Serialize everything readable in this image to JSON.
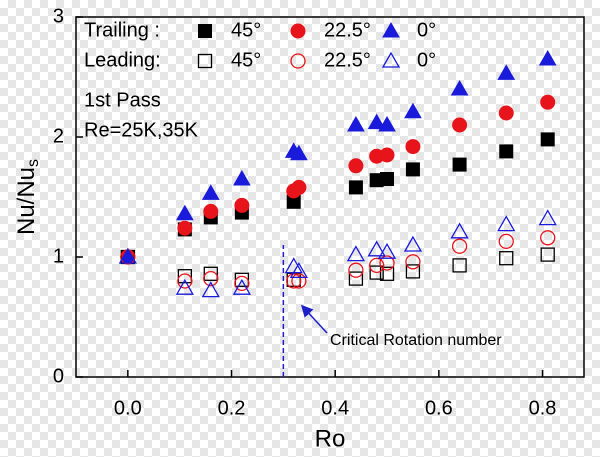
{
  "chart_data": {
    "type": "scatter",
    "xlabel": "Ro",
    "ylabel": {
      "text": "Nu/Nu",
      "sub": "s"
    },
    "xlim": [
      -0.1,
      0.88
    ],
    "ylim": [
      0,
      3
    ],
    "xticks": [
      {
        "value": 0,
        "label": "0.0"
      },
      0.2,
      0.4,
      0.6,
      0.8
    ],
    "yticks": [
      0,
      1,
      2,
      3
    ],
    "annotations": [
      "1st Pass",
      "Re=25K,35K"
    ],
    "critical_line": {
      "x": 0.3,
      "ymax": 1.1,
      "label": "Critical Rotation number",
      "color": "#1f1fc8"
    },
    "series_groups": [
      {
        "label": "Trailing :",
        "series": [
          {
            "name": "45°",
            "marker": "square",
            "filled": true,
            "color": "#000000",
            "x": [
              0,
              0.11,
              0.16,
              0.22,
              0.32,
              0.44,
              0.48,
              0.5,
              0.55,
              0.64,
              0.73,
              0.81
            ],
            "values": [
              1.0,
              1.23,
              1.33,
              1.37,
              1.46,
              1.58,
              1.64,
              1.65,
              1.73,
              1.77,
              1.88,
              1.98
            ]
          },
          {
            "name": "22.5°",
            "marker": "circle",
            "filled": true,
            "color": "#e8141b",
            "x": [
              0,
              0.11,
              0.16,
              0.22,
              0.32,
              0.33,
              0.44,
              0.48,
              0.5,
              0.55,
              0.64,
              0.73,
              0.81
            ],
            "values": [
              1.0,
              1.24,
              1.38,
              1.43,
              1.55,
              1.58,
              1.76,
              1.84,
              1.85,
              1.92,
              2.1,
              2.2,
              2.29
            ]
          },
          {
            "name": "0°",
            "marker": "triangle",
            "filled": true,
            "color": "#1a1adb",
            "x": [
              0,
              0.11,
              0.16,
              0.22,
              0.32,
              0.33,
              0.44,
              0.48,
              0.5,
              0.55,
              0.64,
              0.73,
              0.81
            ],
            "values": [
              1.0,
              1.36,
              1.53,
              1.65,
              1.88,
              1.86,
              2.1,
              2.12,
              2.1,
              2.21,
              2.4,
              2.53,
              2.65
            ]
          }
        ]
      },
      {
        "label": "Leading:",
        "series": [
          {
            "name": "45°",
            "marker": "square",
            "filled": false,
            "color": "#000000",
            "x": [
              0,
              0.11,
              0.16,
              0.22,
              0.32,
              0.44,
              0.48,
              0.5,
              0.55,
              0.64,
              0.73,
              0.81
            ],
            "values": [
              1.0,
              0.84,
              0.86,
              0.81,
              0.81,
              0.82,
              0.87,
              0.86,
              0.88,
              0.93,
              0.99,
              1.02
            ]
          },
          {
            "name": "22.5°",
            "marker": "circle",
            "filled": false,
            "color": "#e8141b",
            "x": [
              0,
              0.11,
              0.16,
              0.22,
              0.32,
              0.33,
              0.44,
              0.48,
              0.5,
              0.55,
              0.64,
              0.73,
              0.81
            ],
            "values": [
              1.0,
              0.8,
              0.82,
              0.78,
              0.8,
              0.8,
              0.89,
              0.93,
              0.95,
              0.96,
              1.09,
              1.13,
              1.16
            ]
          },
          {
            "name": "0°",
            "marker": "triangle",
            "filled": false,
            "color": "#1a1adb",
            "x": [
              0,
              0.11,
              0.16,
              0.22,
              0.32,
              0.33,
              0.44,
              0.48,
              0.5,
              0.55,
              0.64,
              0.73,
              0.81
            ],
            "values": [
              1.0,
              0.74,
              0.72,
              0.74,
              0.92,
              0.88,
              1.02,
              1.06,
              1.04,
              1.1,
              1.21,
              1.27,
              1.32
            ]
          }
        ]
      }
    ]
  }
}
